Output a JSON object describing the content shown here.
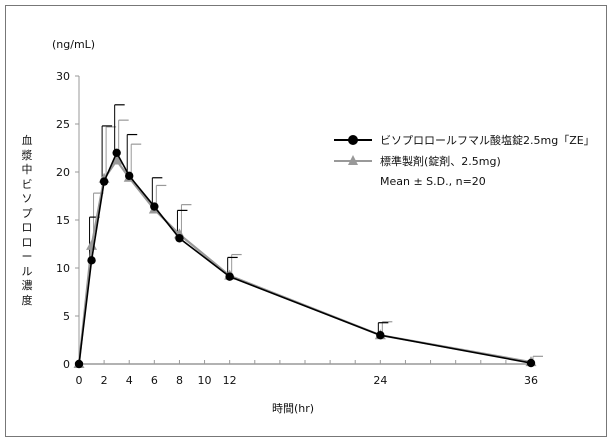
{
  "chart_data": {
    "type": "line",
    "title": "",
    "xlabel": "時間(hr)",
    "ylabel": "血漿中ビソプロロール濃度",
    "y_unit": "(ng/mL)",
    "xlim": [
      0,
      36
    ],
    "ylim": [
      0,
      30
    ],
    "x_ticks": [
      0,
      2,
      4,
      6,
      8,
      10,
      12,
      24,
      36
    ],
    "y_ticks": [
      0,
      5,
      10,
      15,
      20,
      25,
      30
    ],
    "grid": false,
    "legend_position": "right-upper",
    "x": [
      0,
      1,
      2,
      3,
      4,
      6,
      8,
      12,
      24,
      36
    ],
    "series": [
      {
        "name": "ビソプロロールフマル酸塩錠2.5mg「ZE」",
        "marker": "circle",
        "color": "#000000",
        "values": [
          0,
          10.8,
          19.0,
          22.0,
          19.6,
          16.4,
          13.1,
          9.1,
          3.0,
          0.1
        ],
        "sd_upper": [
          0,
          15.3,
          24.8,
          27.0,
          23.9,
          19.4,
          16.0,
          11.1,
          4.3,
          0.2
        ]
      },
      {
        "name": "標準製剤(錠剤、2.5mg)",
        "marker": "triangle",
        "color": "#999999",
        "values": [
          0,
          12.3,
          19.3,
          21.2,
          19.4,
          16.1,
          13.5,
          9.2,
          3.0,
          0.2
        ],
        "sd_upper": [
          0,
          17.8,
          24.7,
          25.4,
          22.9,
          18.6,
          16.6,
          11.4,
          4.4,
          0.8
        ]
      }
    ],
    "annotations": [
      "Mean ± S.D., n=20"
    ]
  },
  "labels": {
    "unit": "(ng/mL)",
    "ylabel": "血漿中ビソプロロール濃度",
    "xlabel": "時間(hr)",
    "legend": [
      "ビソプロロールフマル酸塩錠2.5mg「ZE」",
      "標準製剤(錠剤、2.5mg)"
    ],
    "note": "Mean ± S.D., n=20"
  }
}
